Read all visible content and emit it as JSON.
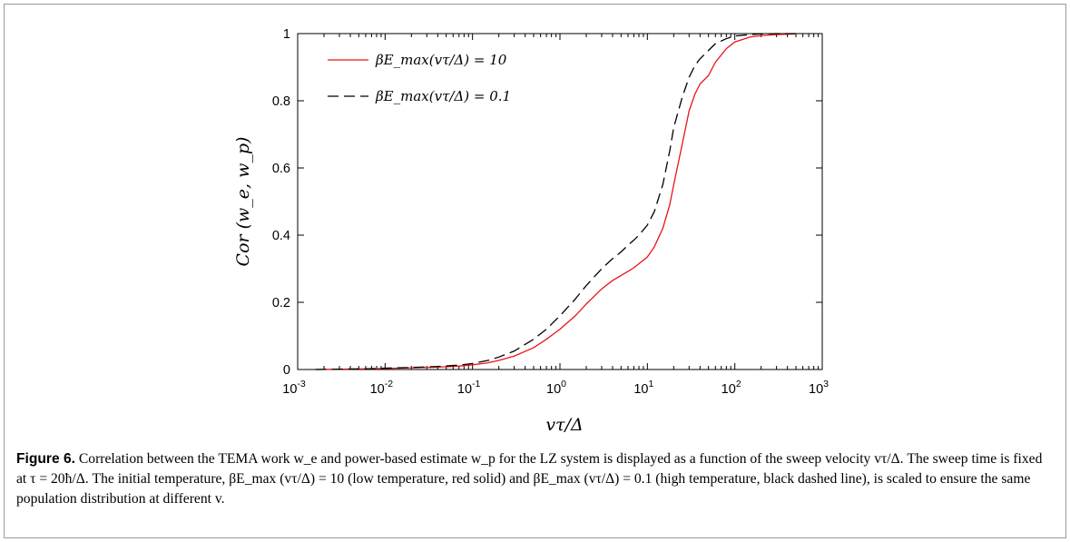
{
  "chart_data": {
    "type": "line",
    "x_scale": "log",
    "xlabel": "vτ/Δ",
    "ylabel": "Cor (w_e, w_p)",
    "xlim": [
      0.001,
      1000
    ],
    "ylim": [
      0,
      1
    ],
    "x_ticks": [
      {
        "base": "10",
        "exp": "-3",
        "value": 0.001
      },
      {
        "base": "10",
        "exp": "-2",
        "value": 0.01
      },
      {
        "base": "10",
        "exp": "-1",
        "value": 0.1
      },
      {
        "base": "10",
        "exp": "0",
        "value": 1
      },
      {
        "base": "10",
        "exp": "1",
        "value": 10
      },
      {
        "base": "10",
        "exp": "2",
        "value": 100
      },
      {
        "base": "10",
        "exp": "3",
        "value": 1000
      }
    ],
    "y_ticks": [
      "0",
      "0.2",
      "0.4",
      "0.6",
      "0.8",
      "1"
    ],
    "legend_position": "top-left",
    "series": [
      {
        "name": "βE_max(vτ/Δ) = 10",
        "color": "#e8141a",
        "style": "solid",
        "x": [
          0.0016,
          0.003,
          0.006,
          0.01,
          0.02,
          0.04,
          0.07,
          0.1,
          0.15,
          0.2,
          0.3,
          0.5,
          0.7,
          1,
          1.5,
          2,
          3,
          4,
          5,
          6,
          7,
          8,
          10,
          12,
          15,
          18,
          20,
          25,
          30,
          35,
          40,
          50,
          60,
          80,
          100,
          150,
          200,
          300,
          500
        ],
        "y": [
          0,
          0.001,
          0.002,
          0.003,
          0.005,
          0.007,
          0.01,
          0.014,
          0.02,
          0.027,
          0.04,
          0.065,
          0.09,
          0.12,
          0.16,
          0.195,
          0.24,
          0.265,
          0.28,
          0.292,
          0.303,
          0.315,
          0.335,
          0.365,
          0.42,
          0.49,
          0.55,
          0.67,
          0.77,
          0.82,
          0.85,
          0.875,
          0.915,
          0.955,
          0.975,
          0.99,
          0.994,
          0.997,
          0.999
        ]
      },
      {
        "name": "βE_max(vτ/Δ) = 0.1",
        "color": "#000000",
        "style": "dashed",
        "x": [
          0.0016,
          0.003,
          0.006,
          0.01,
          0.02,
          0.04,
          0.07,
          0.1,
          0.15,
          0.2,
          0.3,
          0.5,
          0.7,
          1,
          1.5,
          2,
          3,
          4,
          5,
          6,
          7,
          8,
          10,
          12,
          15,
          18,
          20,
          25,
          30,
          35,
          40,
          50,
          60,
          80,
          100,
          150,
          200,
          300,
          500
        ],
        "y": [
          0,
          0.001,
          0.002,
          0.004,
          0.006,
          0.009,
          0.013,
          0.018,
          0.027,
          0.037,
          0.055,
          0.09,
          0.12,
          0.16,
          0.21,
          0.25,
          0.3,
          0.33,
          0.35,
          0.37,
          0.385,
          0.4,
          0.43,
          0.47,
          0.55,
          0.65,
          0.72,
          0.81,
          0.87,
          0.905,
          0.925,
          0.95,
          0.97,
          0.985,
          0.993,
          0.997,
          0.999,
          1.0,
          1.0
        ]
      }
    ]
  },
  "caption": {
    "figure_label": "Figure 6.",
    "text": "Correlation between the TEMA work w_e and power-based estimate w_p for the LZ system is displayed as a function of the sweep velocity vτ/Δ. The sweep time is fixed at τ = 20ħ/Δ. The initial temperature, βE_max (vτ/Δ) = 10 (low temperature, red solid) and βE_max (vτ/Δ) = 0.1 (high temperature, black dashed line), is scaled to ensure the same population distribution at different v."
  }
}
